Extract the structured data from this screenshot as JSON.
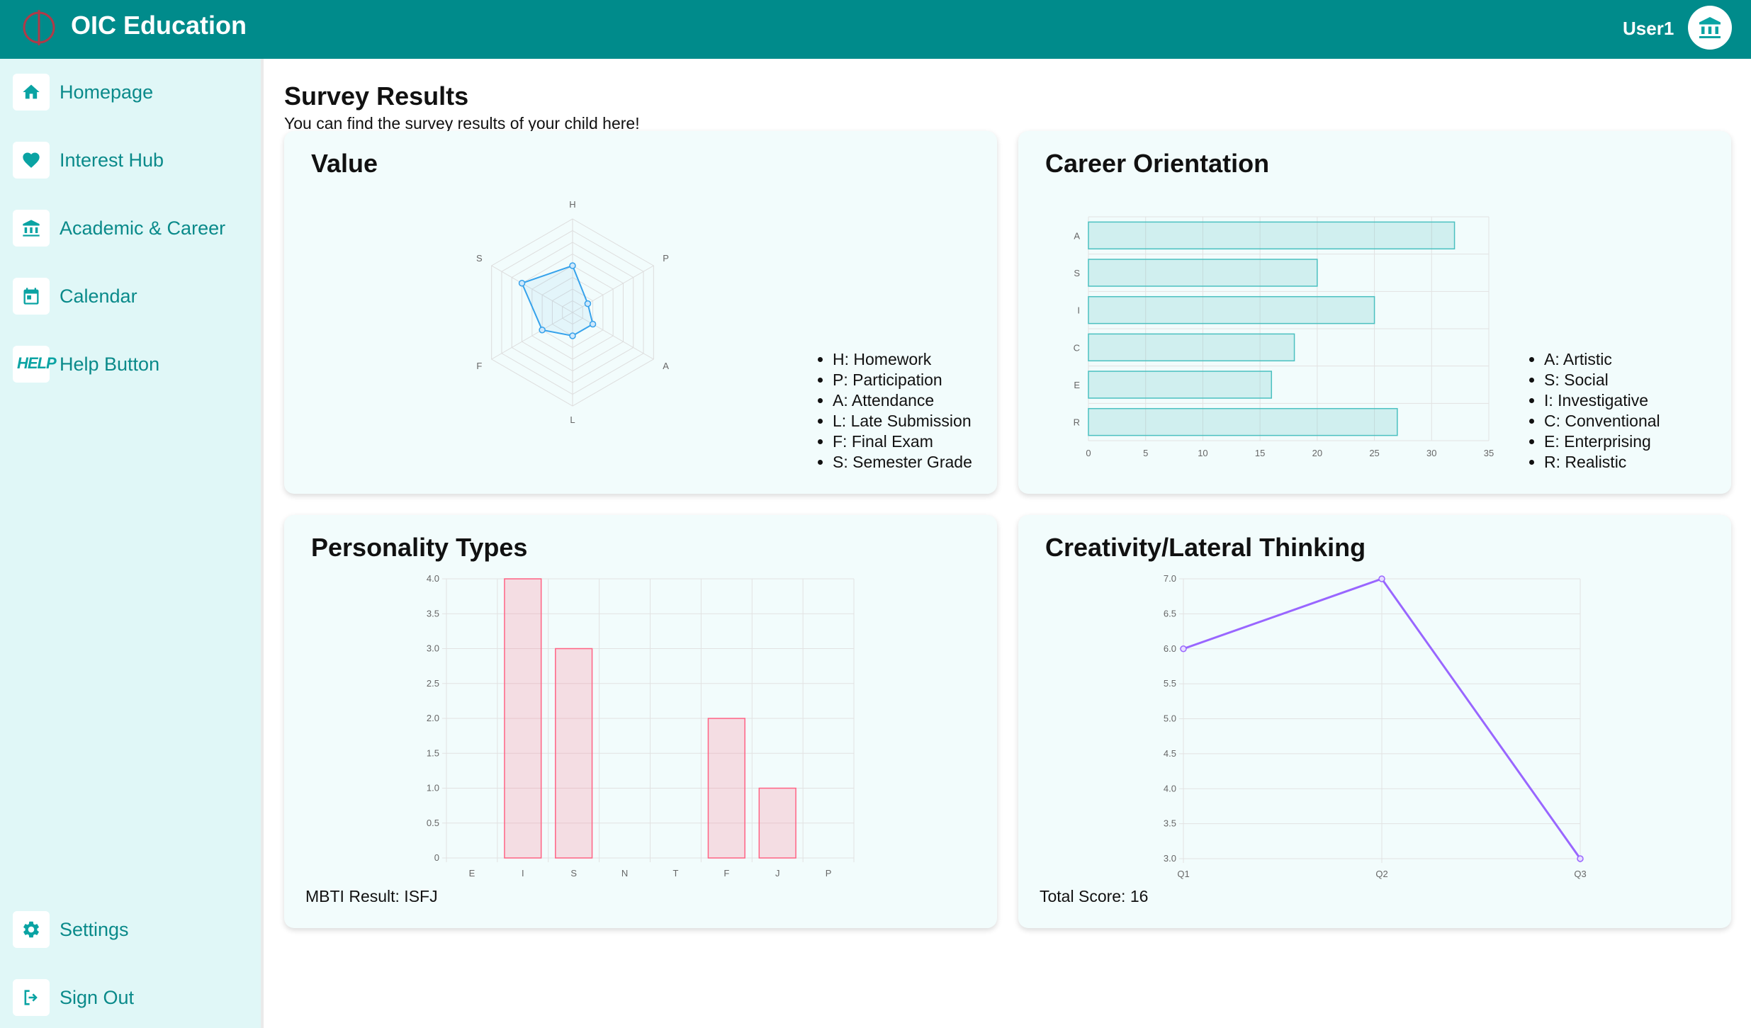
{
  "app": {
    "title": "OIC Education",
    "user": "User1"
  },
  "sidebar": {
    "items": [
      {
        "label": "Homepage",
        "icon": "home-icon"
      },
      {
        "label": "Interest Hub",
        "icon": "heart-icon"
      },
      {
        "label": "Academic & Career",
        "icon": "bank-icon"
      },
      {
        "label": "Calendar",
        "icon": "calendar-icon"
      },
      {
        "label": "Help Button",
        "icon": "help-icon",
        "glyph": "HELP"
      }
    ],
    "bottom_items": [
      {
        "label": "Settings",
        "icon": "gear-icon"
      },
      {
        "label": "Sign Out",
        "icon": "sign-out-icon"
      }
    ]
  },
  "page": {
    "title": "Survey Results",
    "subtitle": "You can find the survey results of your child here!"
  },
  "cards": {
    "value": {
      "title": "Value",
      "legend": [
        "H: Homework",
        "P: Participation",
        "A: Attendance",
        "L: Late Submission",
        "F: Final Exam",
        "S: Semester Grade"
      ]
    },
    "career": {
      "title": "Career Orientation",
      "legend": [
        "A: Artistic",
        "S: Social",
        "I: Investigative",
        "C: Conventional",
        "E: Enterprising",
        "R: Realistic"
      ]
    },
    "personality": {
      "title": "Personality Types",
      "footer": "MBTI Result: ISFJ"
    },
    "creativity": {
      "title": "Creativity/Lateral Thinking",
      "footer": "Total Score: 16"
    }
  },
  "colors": {
    "header": "#008b8b",
    "sidebar": "#e0f7f7",
    "nav_text": "#0a8a8a",
    "radar_line": "#36a2eb",
    "bar_teal": "#4bc0c0",
    "bar_pink": "#ff6384",
    "line_purple": "#9966ff"
  },
  "chart_data": [
    {
      "type": "radar",
      "categories": [
        "H",
        "P",
        "A",
        "L",
        "F",
        "S"
      ],
      "values": [
        4,
        1.5,
        2,
        2,
        3,
        5
      ],
      "rlim": [
        0,
        8
      ]
    },
    {
      "type": "bar",
      "orientation": "horizontal",
      "categories": [
        "A",
        "S",
        "I",
        "C",
        "E",
        "R"
      ],
      "values": [
        32,
        20,
        25,
        18,
        16,
        27
      ],
      "xlim": [
        0,
        35
      ],
      "xticks": [
        0,
        5,
        10,
        15,
        20,
        25,
        30,
        35
      ],
      "grid": true
    },
    {
      "type": "bar",
      "categories": [
        "E",
        "I",
        "S",
        "N",
        "T",
        "F",
        "J",
        "P"
      ],
      "values": [
        0,
        4,
        3,
        0,
        0,
        2,
        1,
        0
      ],
      "ylim": [
        0,
        4
      ],
      "yticks": [
        "0",
        "0.5",
        "1.0",
        "1.5",
        "2.0",
        "2.5",
        "3.0",
        "3.5",
        "4.0"
      ],
      "grid": true
    },
    {
      "type": "line",
      "categories": [
        "Q1",
        "Q2",
        "Q3"
      ],
      "values": [
        6.0,
        7.0,
        3.0
      ],
      "ylim": [
        3,
        7
      ],
      "yticks": [
        "3.0",
        "3.5",
        "4.0",
        "4.5",
        "5.0",
        "5.5",
        "6.0",
        "6.5",
        "7.0"
      ],
      "grid": true
    }
  ]
}
